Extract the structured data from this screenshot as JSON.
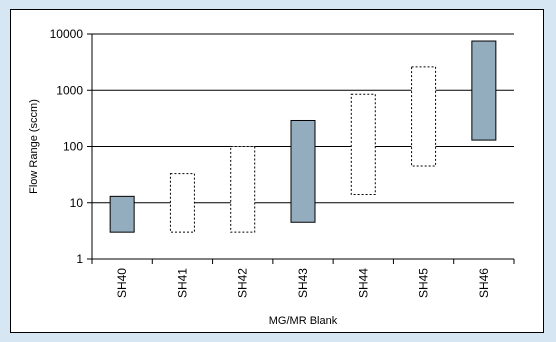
{
  "chart_data": {
    "type": "bar",
    "subtype": "floating-range",
    "title": "",
    "xlabel": "MG/MR Blank",
    "ylabel": "Flow Range (sccm)",
    "y_scale": "log",
    "ylim": [
      1,
      10000
    ],
    "y_ticks": [
      "1",
      "10",
      "100",
      "1000",
      "10000"
    ],
    "grid": "horizontal",
    "legend": "none",
    "categories": [
      "SH40",
      "SH41",
      "SH42",
      "SH43",
      "SH44",
      "SH45",
      "SH46"
    ],
    "series": [
      {
        "ranges": [
          {
            "category": "SH40",
            "low": 3,
            "high": 13,
            "style": "solid"
          },
          {
            "category": "SH41",
            "low": 3,
            "high": 33,
            "style": "dashed"
          },
          {
            "category": "SH42",
            "low": 3,
            "high": 100,
            "style": "dashed"
          },
          {
            "category": "SH43",
            "low": 4.5,
            "high": 290,
            "style": "solid"
          },
          {
            "category": "SH44",
            "low": 14,
            "high": 850,
            "style": "dashed"
          },
          {
            "category": "SH45",
            "low": 45,
            "high": 2600,
            "style": "dashed"
          },
          {
            "category": "SH46",
            "low": 130,
            "high": 7500,
            "style": "solid"
          }
        ]
      }
    ],
    "colors": {
      "solid_fill": "#93adbf",
      "outline": "#000000",
      "background": "#d7e6f3"
    }
  }
}
